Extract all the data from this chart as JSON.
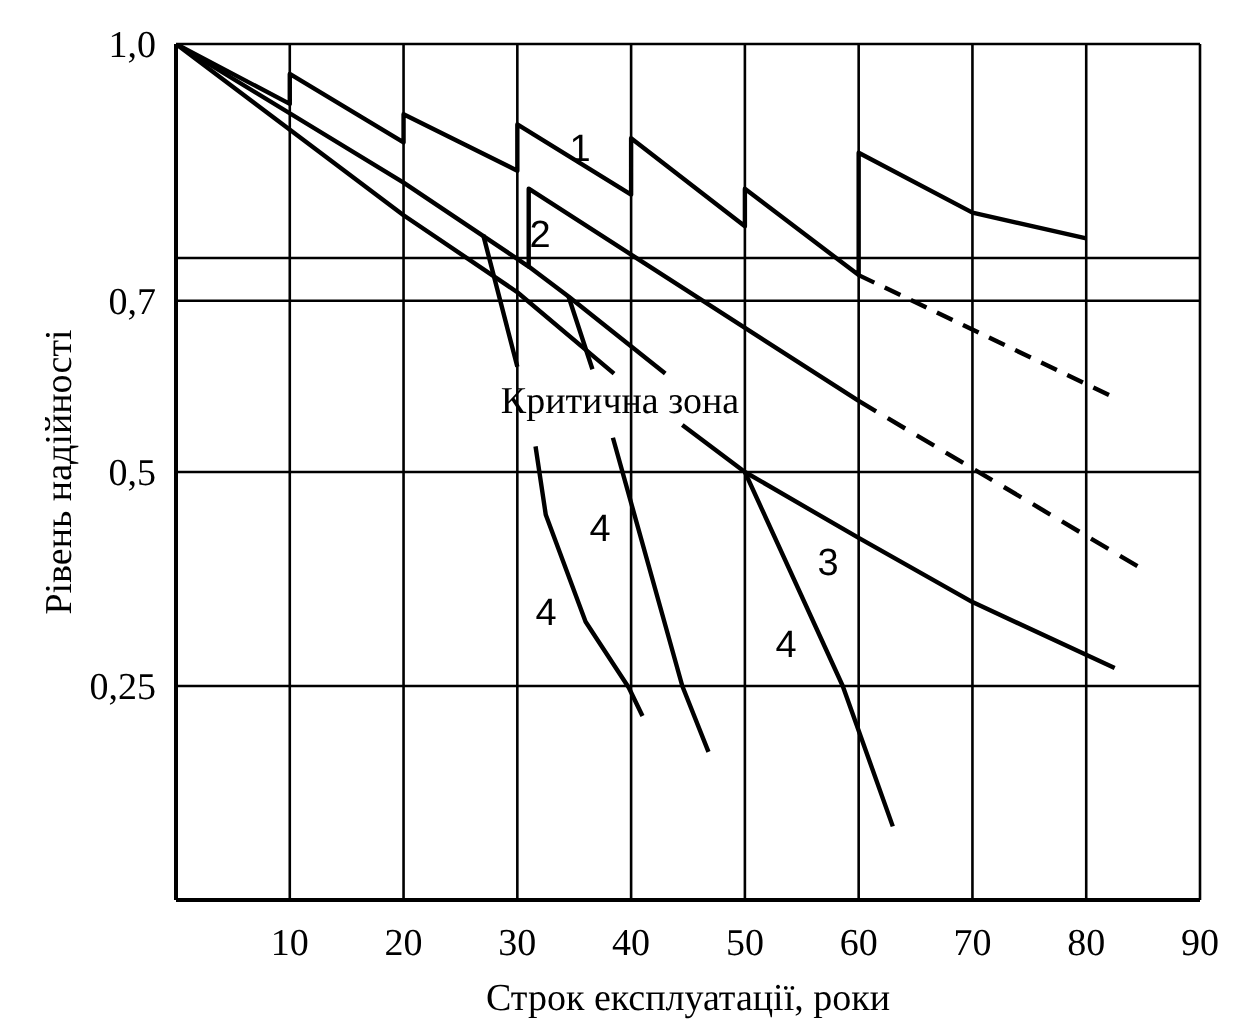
{
  "chart_data": {
    "type": "line",
    "xlabel": "Строк експлуатації, роки",
    "ylabel": "Рівень надійності",
    "xlim": [
      0,
      90
    ],
    "xticks": [
      10,
      20,
      30,
      40,
      50,
      60,
      70,
      80,
      90
    ],
    "ylim": [
      0,
      1
    ],
    "yticks": [
      {
        "value": 0.25,
        "label": "0,25"
      },
      {
        "value": 0.5,
        "label": "0,5"
      },
      {
        "value": 0.7,
        "label": "0,7"
      },
      {
        "value": 0.75,
        "label": null
      },
      {
        "value": 1,
        "label": "1,0"
      }
    ],
    "grid": true,
    "marker": "none",
    "series": [
      {
        "color": "#000000",
        "line_style": "solid",
        "x": [
          0,
          10,
          10,
          20,
          20,
          30,
          30,
          40,
          40,
          50,
          50,
          60,
          60,
          70,
          80
        ],
        "values": [
          1,
          0.93,
          0.965,
          0.885,
          0.918,
          0.852,
          0.906,
          0.824,
          0.89,
          0.787,
          0.831,
          0.73,
          0.873,
          0.803,
          0.773
        ]
      },
      {
        "color": "#000000",
        "line_style": "dashed",
        "x": [
          60,
          82
        ],
        "values": [
          0.73,
          0.59
        ]
      },
      {
        "color": "#000000",
        "line_style": "solid",
        "x": [
          0,
          20,
          31,
          31,
          40,
          60
        ],
        "values": [
          1,
          0.838,
          0.74,
          0.831,
          0.754,
          0.583
        ]
      },
      {
        "color": "#000000",
        "line_style": "dashed",
        "x": [
          60,
          84.5
        ],
        "values": [
          0.583,
          0.39
        ]
      },
      {
        "color": "#000000",
        "line_style": "solid",
        "x": [
          31,
          34.5,
          43
        ],
        "values": [
          0.74,
          0.705,
          0.615
        ]
      },
      {
        "color": "#000000",
        "line_style": "solid",
        "x": [
          0,
          20,
          30,
          38.5,
          41.5,
          44.5,
          50,
          60,
          70,
          82.5
        ],
        "values": [
          1,
          0.8,
          0.71,
          0.615,
          null,
          0.555,
          0.5,
          0.423,
          0.348,
          0.271
        ]
      },
      {
        "color": "#000000",
        "line_style": "solid",
        "x": [
          27,
          30,
          30.8,
          31.6,
          32.5,
          36,
          39.8,
          41
        ],
        "values": [
          0.777,
          0.623,
          null,
          0.53,
          0.45,
          0.325,
          0.248,
          0.215
        ]
      },
      {
        "color": "#000000",
        "line_style": "solid",
        "x": [
          34.5,
          36.6,
          37.5,
          38.4,
          44.5,
          46.8
        ],
        "values": [
          0.705,
          0.62,
          null,
          0.54,
          0.25,
          0.173
        ]
      },
      {
        "color": "#000000",
        "line_style": "solid",
        "x": [
          50,
          58.6,
          63
        ],
        "values": [
          0.5,
          0.25,
          0.086
        ]
      }
    ],
    "annotations": [
      "1",
      "2",
      "3",
      "4",
      "4",
      "4",
      "Критична зона"
    ]
  }
}
